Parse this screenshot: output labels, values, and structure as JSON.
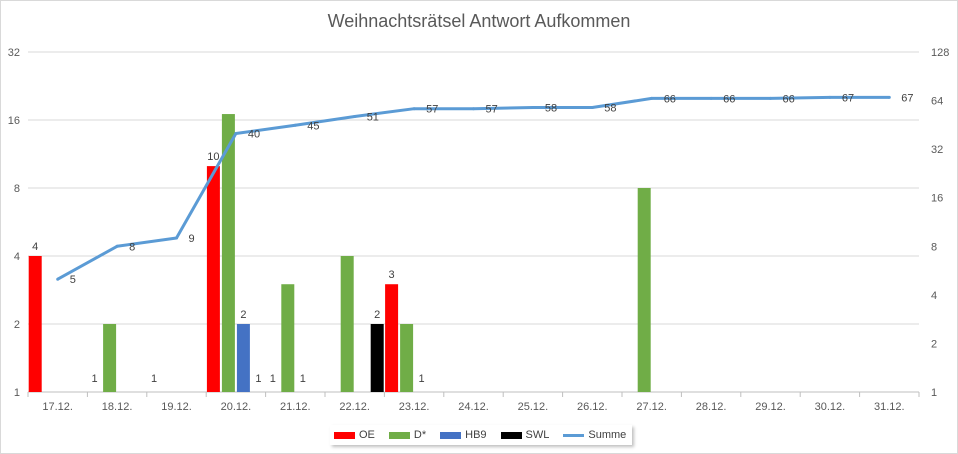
{
  "chart_data": {
    "type": "bar",
    "title": "Weihnachtsrätsel Antwort Aufkommen",
    "categories": [
      "17.12.",
      "18.12.",
      "19.12.",
      "20.12.",
      "21.12.",
      "22.12.",
      "23.12.",
      "24.12.",
      "25.12.",
      "26.12.",
      "27.12.",
      "28.12.",
      "29.12.",
      "30.12.",
      "31.12."
    ],
    "left_axis": {
      "scale": "log2",
      "ticks": [
        "1",
        "2",
        "4",
        "8",
        "16",
        "32"
      ],
      "ylim": [
        1,
        32
      ]
    },
    "right_axis": {
      "scale": "log2",
      "ticks": [
        "1",
        "2",
        "4",
        "8",
        "16",
        "32",
        "64",
        "128"
      ],
      "ylim": [
        1,
        128
      ]
    },
    "grid": true,
    "legend_position": "bottom",
    "bar_series": [
      {
        "name": "OE",
        "color": "#ff0000",
        "values": [
          4,
          null,
          null,
          10,
          null,
          null,
          3,
          null,
          null,
          null,
          null,
          null,
          null,
          null,
          null
        ]
      },
      {
        "name": "D*",
        "color": "#70ad47",
        "values": [
          null,
          2,
          null,
          17,
          3,
          4,
          2,
          null,
          null,
          null,
          8,
          null,
          null,
          null,
          null
        ]
      },
      {
        "name": "HB9",
        "color": "#4472c4",
        "values": [
          null,
          null,
          null,
          2,
          null,
          null,
          null,
          null,
          null,
          null,
          null,
          null,
          null,
          null,
          null
        ]
      },
      {
        "name": "SWL",
        "color": "#000000",
        "values": [
          null,
          null,
          null,
          null,
          null,
          2,
          null,
          null,
          null,
          null,
          null,
          null,
          null,
          null,
          null
        ]
      }
    ],
    "line_series": {
      "name": "Summe",
      "color": "#5b9bd5",
      "axis": "right",
      "values": [
        5,
        8,
        9,
        40,
        45,
        51,
        57,
        57,
        58,
        58,
        66,
        66,
        66,
        67,
        67
      ]
    },
    "data_labels": [
      {
        "category": "17.12.",
        "series": "OE",
        "text": "4"
      },
      {
        "category": "18.12.",
        "series": "OE",
        "text": "1"
      },
      {
        "category": "19.12.",
        "series": "OE",
        "text": "1"
      },
      {
        "category": "20.12.",
        "series": "OE",
        "text": "10"
      },
      {
        "category": "20.12.",
        "series": "HB9",
        "text": "2"
      },
      {
        "category": "20.12.",
        "series": "SWL",
        "text": "1"
      },
      {
        "category": "21.12.",
        "series": "OE",
        "text": "1"
      },
      {
        "category": "21.12.",
        "series": "HB9",
        "text": "1"
      },
      {
        "category": "22.12.",
        "series": "SWL",
        "text": "2"
      },
      {
        "category": "23.12.",
        "series": "OE",
        "text": "3"
      },
      {
        "category": "23.12.",
        "series": "HB9",
        "text": "1"
      }
    ],
    "line_labels": [
      "5",
      "8",
      "9",
      "40",
      "45",
      "51",
      "57",
      "57",
      "58",
      "58",
      "66",
      "66",
      "66",
      "67",
      "67"
    ]
  }
}
